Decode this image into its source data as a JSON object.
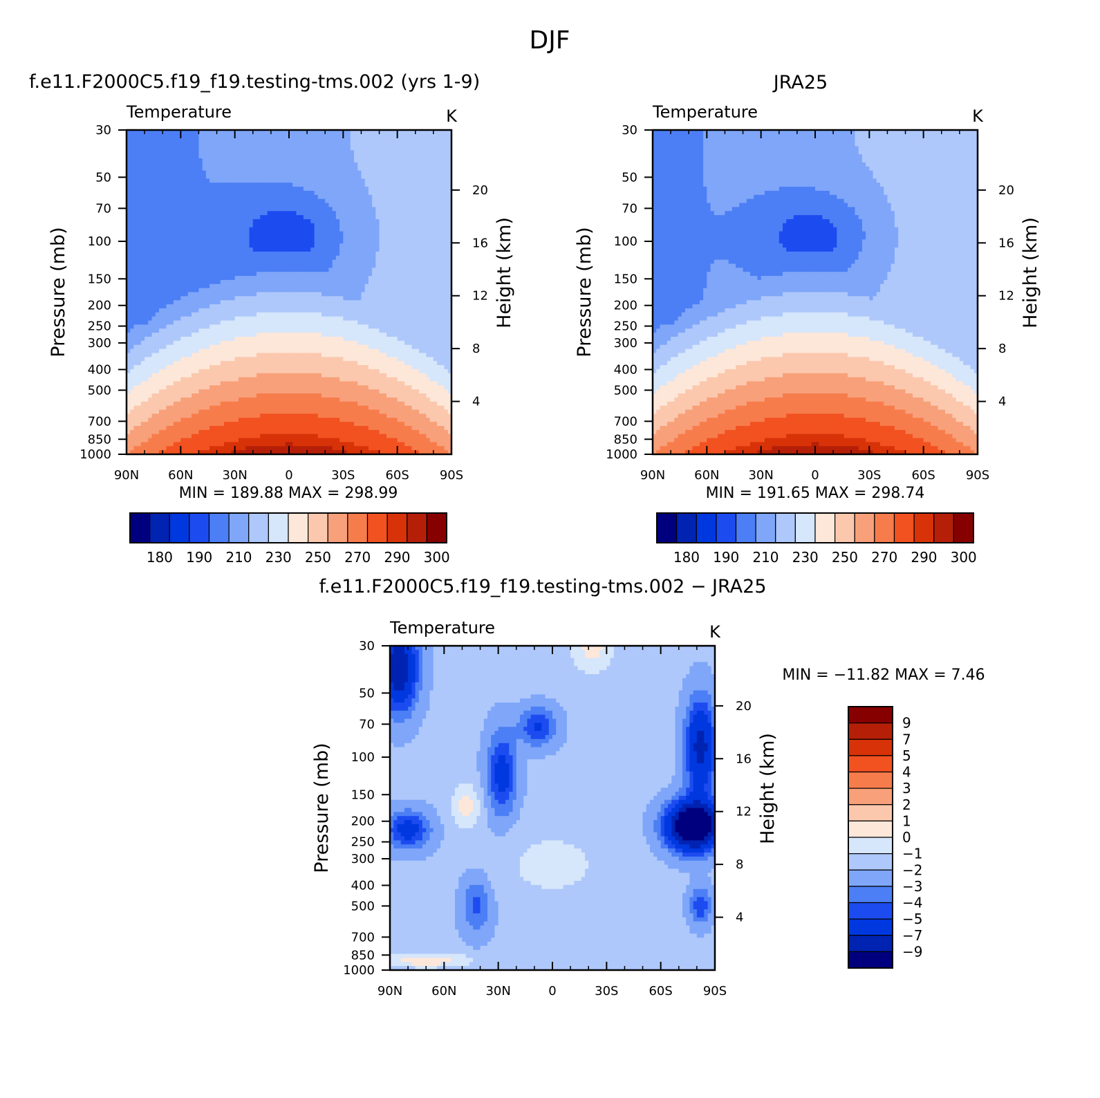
{
  "figure": {
    "title": "DJF"
  },
  "palettes": {
    "abs": [
      "#00007f",
      "#0023b2",
      "#0038e0",
      "#1c4cf0",
      "#4c7ff5",
      "#7fa6f9",
      "#aec8fb",
      "#d6e6fb",
      "#fde7d9",
      "#fbc8ae",
      "#f8a07a",
      "#f77c4c",
      "#f25120",
      "#d83208",
      "#b51f08",
      "#870000"
    ],
    "diff": [
      "#870000",
      "#b51f08",
      "#d83208",
      "#f25120",
      "#f77c4c",
      "#f8a07a",
      "#fbc8ae",
      "#fde7d9",
      "#d6e6fb",
      "#aec8fb",
      "#7fa6f9",
      "#4c7ff5",
      "#1c4cf0",
      "#0038e0",
      "#0023b2",
      "#00007f"
    ]
  },
  "chart_data": [
    {
      "type": "contour",
      "id": "model",
      "title": "f.e11.F2000C5.f19_f19.testing-tms.002 (yrs 1-9)",
      "left_label": "Temperature",
      "right_label": "K",
      "ylabel": "Pressure (mb)",
      "ylabel2": "Height (km)",
      "x_ticks": [
        "90N",
        "60N",
        "30N",
        "0",
        "30S",
        "60S",
        "90S"
      ],
      "x_range": [
        90,
        -90
      ],
      "y_ticks": [
        30,
        50,
        70,
        100,
        150,
        200,
        250,
        300,
        400,
        500,
        700,
        850,
        1000
      ],
      "y_range": [
        30,
        1000
      ],
      "height_ticks": [
        20,
        16,
        12,
        8,
        4
      ],
      "stats": "MIN  =  189.88    MAX  =  298.99",
      "colorbar_labels": [
        "180",
        "190",
        "210",
        "230",
        "250",
        "270",
        "290",
        "300"
      ],
      "colorbar_levels": [
        180,
        185,
        190,
        200,
        210,
        220,
        230,
        240,
        250,
        260,
        270,
        280,
        290,
        295,
        300
      ],
      "field": "abs",
      "strat_offset": 0
    },
    {
      "type": "contour",
      "id": "obs",
      "title": "JRA25",
      "left_label": "Temperature",
      "right_label": "K",
      "ylabel": "Pressure (mb)",
      "ylabel2": "Height (km)",
      "x_ticks": [
        "90N",
        "60N",
        "30N",
        "0",
        "30S",
        "60S",
        "90S"
      ],
      "x_range": [
        90,
        -90
      ],
      "y_ticks": [
        30,
        50,
        70,
        100,
        150,
        200,
        250,
        300,
        400,
        500,
        700,
        850,
        1000
      ],
      "y_range": [
        30,
        1000
      ],
      "height_ticks": [
        20,
        16,
        12,
        8,
        4
      ],
      "stats": "MIN  =  191.65    MAX  =  298.74",
      "colorbar_labels": [
        "180",
        "190",
        "210",
        "230",
        "250",
        "270",
        "290",
        "300"
      ],
      "colorbar_levels": [
        180,
        185,
        190,
        200,
        210,
        220,
        230,
        240,
        250,
        260,
        270,
        280,
        290,
        295,
        300
      ],
      "field": "abs",
      "strat_offset": 1.5
    },
    {
      "type": "contour",
      "id": "diff",
      "title": "f.e11.F2000C5.f19_f19.testing-tms.002 − JRA25",
      "left_label": "Temperature",
      "right_label": "K",
      "ylabel": "Pressure (mb)",
      "ylabel2": "Height (km)",
      "x_ticks": [
        "90N",
        "60N",
        "30N",
        "0",
        "30S",
        "60S",
        "90S"
      ],
      "x_range": [
        90,
        -90
      ],
      "y_ticks": [
        30,
        50,
        70,
        100,
        150,
        200,
        250,
        300,
        400,
        500,
        700,
        850,
        1000
      ],
      "y_range": [
        30,
        1000
      ],
      "height_ticks": [
        20,
        16,
        12,
        8,
        4
      ],
      "stats": "MIN  =  −11.82    MAX  =     7.46",
      "colorbar_labels": [
        "9",
        "7",
        "5",
        "4",
        "3",
        "2",
        "1",
        "0",
        "−1",
        "−2",
        "−3",
        "−4",
        "−5",
        "−7",
        "−9"
      ],
      "colorbar_levels": [
        9,
        7,
        5,
        4,
        3,
        2,
        1,
        0,
        -1,
        -2,
        -3,
        -4,
        -5,
        -7,
        -9
      ],
      "field": "diff"
    }
  ]
}
